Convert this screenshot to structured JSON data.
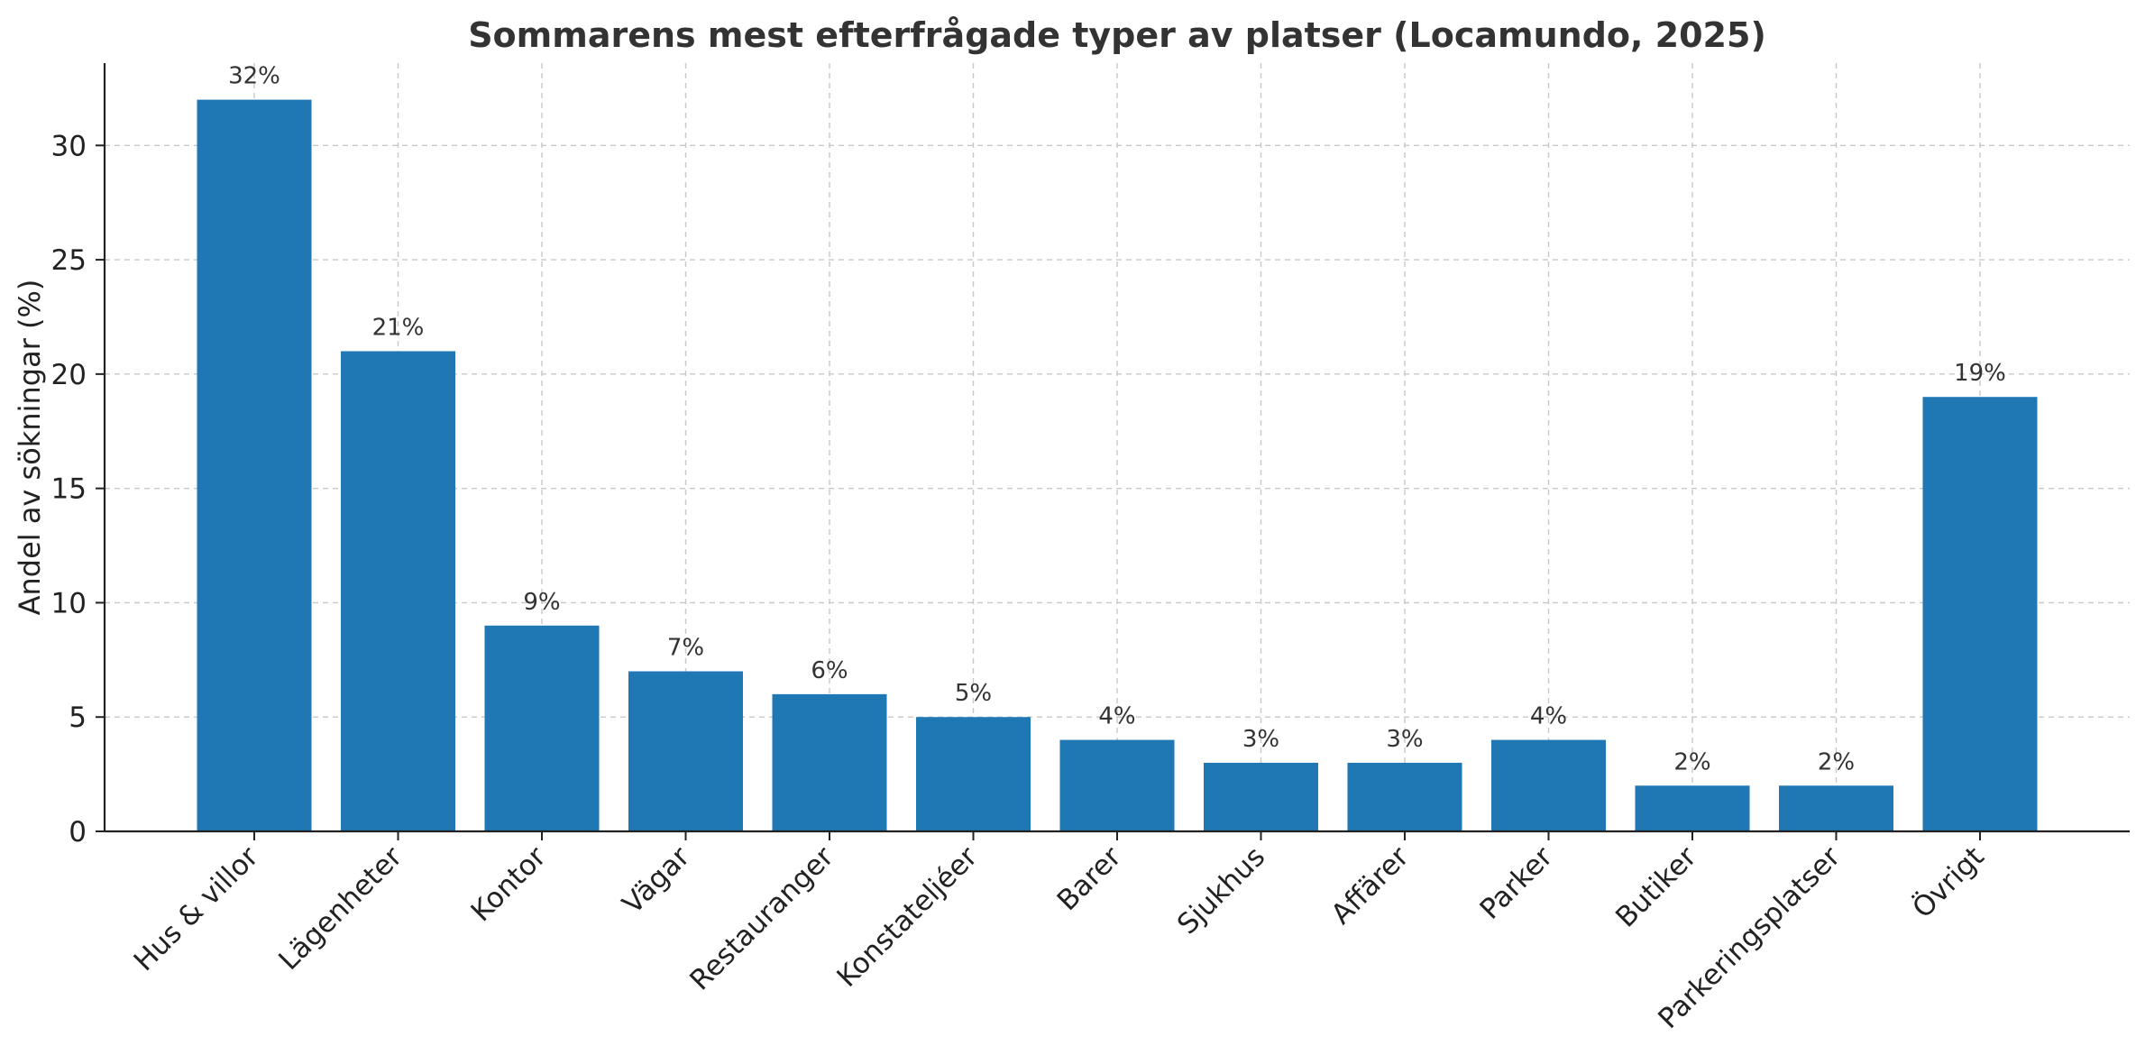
{
  "chart_data": {
    "type": "bar",
    "title": "Sommarens mest efterfrågade typer av platser (Locamundo, 2025)",
    "xlabel": "",
    "ylabel": "Andel av sökningar (%)",
    "categories": [
      "Hus & villor",
      "Lägenheter",
      "Kontor",
      "Vägar",
      "Restauranger",
      "Konstateljéer",
      "Barer",
      "Sjukhus",
      "Affärer",
      "Parker",
      "Butiker",
      "Parkeringsplatser",
      "Övrigt"
    ],
    "values": [
      32,
      21,
      9,
      7,
      6,
      5,
      4,
      3,
      3,
      4,
      2,
      2,
      19
    ],
    "data_labels": [
      "32%",
      "21%",
      "9%",
      "7%",
      "6%",
      "5%",
      "4%",
      "3%",
      "3%",
      "4%",
      "2%",
      "2%",
      "19%"
    ],
    "ylim": [
      0,
      33.6
    ],
    "yticks": [
      0,
      5,
      10,
      15,
      20,
      25,
      30
    ],
    "grid": true,
    "bar_color": "#1f77b4"
  }
}
